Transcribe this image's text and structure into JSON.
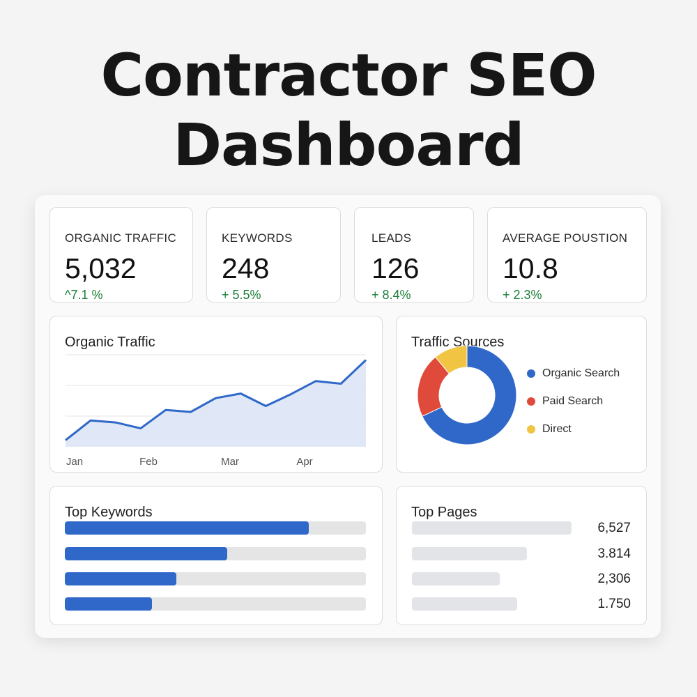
{
  "title": {
    "line1": "Contractor SEO",
    "line2": "Dashboard"
  },
  "kpis": [
    {
      "label": "ORGANIC TRAFFIC",
      "value": "5,032",
      "change": "^7.1 %"
    },
    {
      "label": "KEYWORDS",
      "value": "248",
      "change": "+ 5.5%"
    },
    {
      "label": "LEADS",
      "value": "126",
      "change": "+ 8.4%"
    },
    {
      "label": "AVERAGE POUSTION",
      "value": "10.8",
      "change": "+ 2.3%"
    }
  ],
  "traffic_card": {
    "title": "Organic Traffic"
  },
  "sources_card": {
    "title": "Traffic Sources",
    "legend": [
      {
        "label": "Organic Search",
        "color": "#2f68c9"
      },
      {
        "label": "Paid Search",
        "color": "#e04a3b"
      },
      {
        "label": "Direct",
        "color": "#f2c443"
      }
    ]
  },
  "keywords_card": {
    "title": "Top Keywords",
    "fill_fractions": [
      0.81,
      0.54,
      0.37,
      0.29
    ]
  },
  "pages_card": {
    "title": "Top Pages",
    "values": [
      "6,527",
      "3.814",
      "2,306",
      "1.750"
    ],
    "bar_fractions": [
      1.0,
      0.72,
      0.55,
      0.66
    ]
  },
  "chart_data": [
    {
      "type": "area",
      "title": "Organic Traffic",
      "x_tick_labels": [
        "Jan",
        "Feb",
        "Mar",
        "Apr"
      ],
      "values": [
        10,
        40,
        37,
        28,
        56,
        53,
        74,
        81,
        62,
        80,
        100,
        96,
        132
      ],
      "ylim": [
        0,
        140
      ],
      "grid": true,
      "colors": {
        "line": "#2f68c9",
        "fill": "#dde6f6"
      }
    },
    {
      "type": "pie",
      "title": "Traffic Sources",
      "labels": [
        "Organic Search",
        "Paid Search",
        "Direct"
      ],
      "values": [
        68,
        21,
        11
      ],
      "donut": true,
      "colors": [
        "#2f68c9",
        "#e04a3b",
        "#f2c443"
      ]
    }
  ]
}
